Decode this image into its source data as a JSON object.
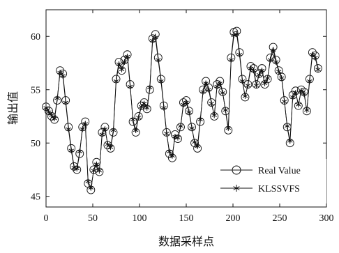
{
  "chart_data": {
    "type": "line",
    "title": "",
    "xlabel": "数据采样点",
    "ylabel": "输出值",
    "xlim": [
      0,
      300
    ],
    "ylim": [
      44,
      62.5
    ],
    "xticks": [
      0,
      50,
      100,
      150,
      200,
      250,
      300
    ],
    "yticks": [
      45,
      50,
      55,
      60
    ],
    "grid": false,
    "legend_position": "bottom-right",
    "x": [
      0,
      3,
      6,
      9,
      12,
      15,
      18,
      21,
      24,
      27,
      30,
      33,
      36,
      39,
      42,
      45,
      48,
      51,
      54,
      57,
      60,
      63,
      66,
      69,
      72,
      75,
      78,
      81,
      84,
      87,
      90,
      93,
      96,
      99,
      102,
      105,
      108,
      111,
      114,
      117,
      120,
      123,
      126,
      129,
      132,
      135,
      138,
      141,
      144,
      147,
      150,
      153,
      156,
      159,
      162,
      165,
      168,
      171,
      174,
      177,
      180,
      183,
      186,
      189,
      192,
      195,
      198,
      201,
      204,
      207,
      210,
      213,
      216,
      219,
      222,
      225,
      228,
      231,
      234,
      237,
      240,
      243,
      246,
      249,
      252,
      255,
      258,
      261,
      264,
      267,
      270,
      273,
      276,
      279,
      282,
      285,
      288,
      291
    ],
    "series": [
      {
        "name": "Real Value",
        "marker": "circle",
        "values": [
          53.4,
          53.0,
          52.5,
          52.2,
          54.0,
          56.8,
          56.5,
          54.0,
          51.5,
          49.5,
          47.8,
          47.5,
          49.0,
          51.5,
          52.0,
          46.2,
          45.6,
          47.5,
          48.2,
          47.3,
          51.0,
          51.5,
          49.8,
          49.5,
          51.0,
          56.0,
          57.6,
          56.8,
          57.8,
          58.3,
          55.5,
          52.0,
          51.0,
          52.5,
          53.5,
          53.8,
          53.2,
          55.0,
          59.8,
          60.2,
          58.0,
          56.0,
          53.5,
          51.0,
          49.0,
          48.6,
          50.8,
          50.4,
          51.5,
          53.8,
          54.0,
          53.0,
          51.5,
          50.0,
          49.5,
          52.0,
          55.0,
          55.8,
          55.2,
          53.8,
          52.5,
          55.5,
          55.8,
          54.8,
          53.0,
          51.2,
          58.0,
          60.4,
          60.5,
          58.5,
          56.0,
          54.3,
          55.5,
          57.2,
          57.0,
          55.5,
          56.5,
          57.0,
          55.5,
          56.0,
          58.0,
          59.0,
          57.8,
          56.8,
          56.2,
          54.0,
          51.5,
          50.0,
          54.5,
          54.9,
          53.5,
          55.0,
          54.8,
          53.0,
          56.0,
          58.5,
          58.2,
          57.0
        ]
      },
      {
        "name": "KLSSVFS",
        "marker": "asterisk",
        "values": [
          53.3,
          52.9,
          52.6,
          52.3,
          54.2,
          56.6,
          56.3,
          53.8,
          51.3,
          49.3,
          47.7,
          47.6,
          49.2,
          51.3,
          51.8,
          46.4,
          45.8,
          47.4,
          48.0,
          47.4,
          50.8,
          51.3,
          49.9,
          49.6,
          51.2,
          55.8,
          57.4,
          56.9,
          57.6,
          58.1,
          55.3,
          52.2,
          51.2,
          52.4,
          53.4,
          53.7,
          53.3,
          55.2,
          59.6,
          59.9,
          57.8,
          55.8,
          53.3,
          50.9,
          49.2,
          48.8,
          50.6,
          50.5,
          51.6,
          53.6,
          53.8,
          52.9,
          51.4,
          50.1,
          49.7,
          52.2,
          54.8,
          55.6,
          55.0,
          53.7,
          52.6,
          55.3,
          55.6,
          54.7,
          53.1,
          51.4,
          57.8,
          60.1,
          60.2,
          58.3,
          55.8,
          54.4,
          55.4,
          57.0,
          56.8,
          55.4,
          56.4,
          56.8,
          55.6,
          56.1,
          57.8,
          58.7,
          57.6,
          56.7,
          56.1,
          53.9,
          51.6,
          50.2,
          54.3,
          54.7,
          53.6,
          54.9,
          54.6,
          53.1,
          55.8,
          58.3,
          58.0,
          56.9
        ]
      }
    ]
  }
}
